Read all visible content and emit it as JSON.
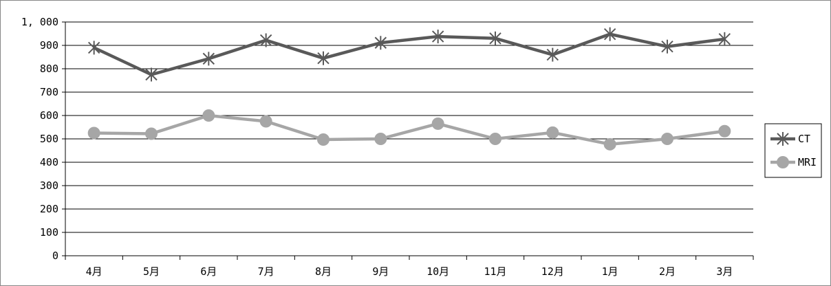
{
  "chart_data": {
    "type": "line",
    "categories": [
      "4月",
      "5月",
      "6月",
      "7月",
      "8月",
      "9月",
      "10月",
      "11月",
      "12月",
      "1月",
      "2月",
      "3月"
    ],
    "series": [
      {
        "name": "CT",
        "values": [
          890,
          775,
          843,
          922,
          845,
          911,
          938,
          930,
          860,
          948,
          895,
          927
        ],
        "color": "#595959",
        "marker": "asterisk"
      },
      {
        "name": "MRI",
        "values": [
          525,
          522,
          600,
          575,
          497,
          500,
          565,
          500,
          527,
          477,
          500,
          533
        ],
        "color": "#a6a6a6",
        "marker": "circle"
      }
    ],
    "ylim": [
      0,
      1000
    ],
    "y_ticks": [
      0,
      100,
      200,
      300,
      400,
      500,
      600,
      700,
      800,
      900,
      1000
    ],
    "y_tick_labels": [
      "0",
      "100",
      "200",
      "300",
      "400",
      "500",
      "600",
      "700",
      "800",
      "900",
      "1, 000"
    ],
    "grid": "horizontal",
    "legend_position": "right",
    "title": "",
    "xlabel": "",
    "ylabel": ""
  }
}
